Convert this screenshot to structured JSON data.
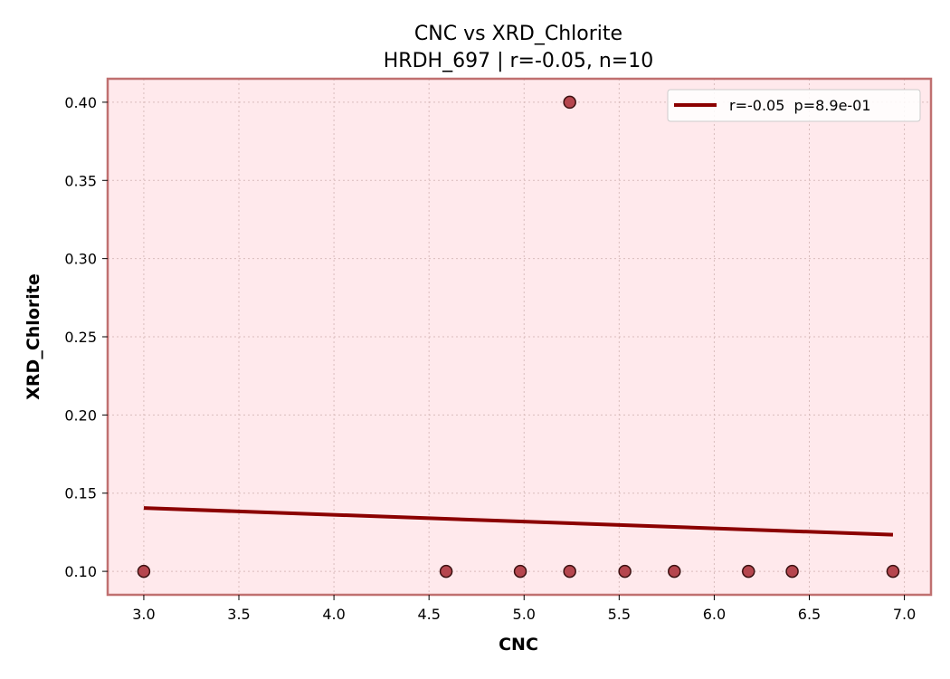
{
  "chart_data": {
    "type": "scatter",
    "title": "CNC vs XRD_Chlorite",
    "subtitle": "HRDH_697 | r=-0.05, n=10",
    "xlabel": "CNC",
    "ylabel": "XRD_Chlorite",
    "xlim": [
      2.81,
      7.14
    ],
    "ylim": [
      0.085,
      0.415
    ],
    "xticks": [
      3.0,
      3.5,
      4.0,
      4.5,
      5.0,
      5.5,
      6.0,
      6.5,
      7.0
    ],
    "yticks": [
      0.1,
      0.15,
      0.2,
      0.25,
      0.3,
      0.35,
      0.4
    ],
    "grid": true,
    "legend_position": "top-right",
    "points": [
      {
        "x": 3.0,
        "y": 0.1
      },
      {
        "x": 4.59,
        "y": 0.1
      },
      {
        "x": 4.98,
        "y": 0.1
      },
      {
        "x": 5.24,
        "y": 0.1
      },
      {
        "x": 5.24,
        "y": 0.4
      },
      {
        "x": 5.53,
        "y": 0.1
      },
      {
        "x": 5.79,
        "y": 0.1
      },
      {
        "x": 6.18,
        "y": 0.1
      },
      {
        "x": 6.41,
        "y": 0.1
      },
      {
        "x": 6.94,
        "y": 0.1
      }
    ],
    "fit_line": {
      "name": "r=-0.05  p=8.9e-01",
      "x": [
        3.0,
        6.94
      ],
      "y": [
        0.1405,
        0.1234
      ]
    },
    "colors": {
      "plot_background": "#ffe9ec",
      "frame": "#c07070",
      "point_fill": "#b5464e",
      "point_edge": "#3a1010",
      "fit_line": "#8b0000",
      "grid": "#d9bcbc"
    }
  }
}
